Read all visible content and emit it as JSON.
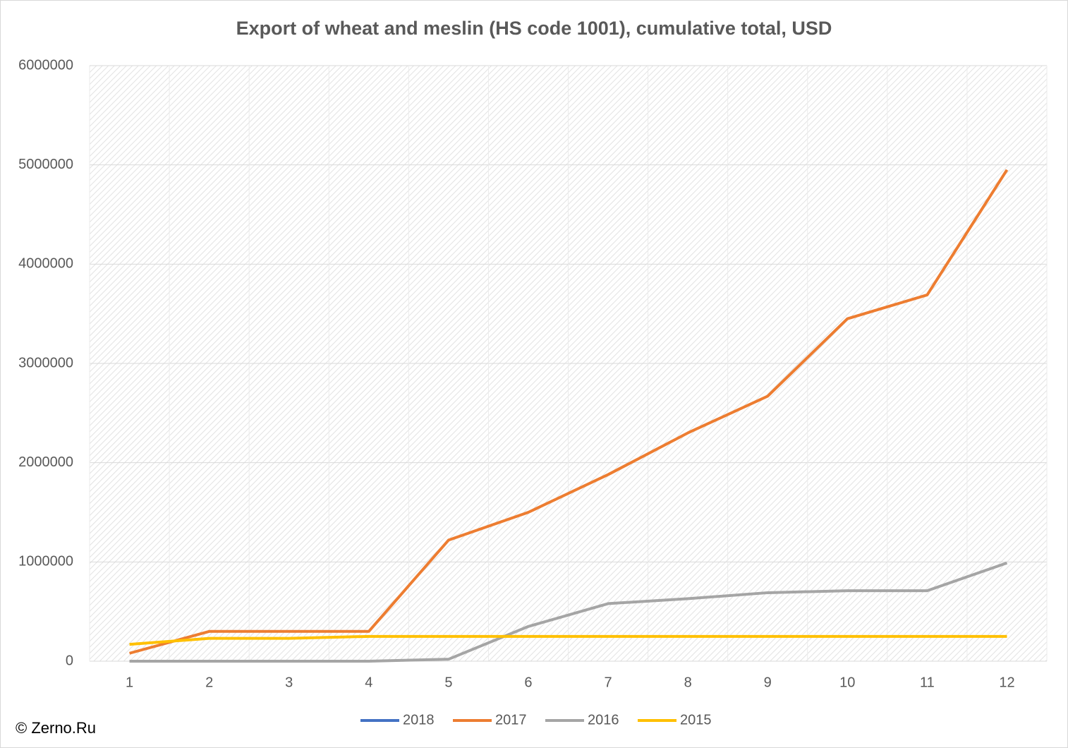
{
  "chart_data": {
    "type": "line",
    "title": "Export of wheat and meslin (HS code 1001), cumulative total, USD",
    "source": "© Zerno.Ru",
    "categories": [
      "1",
      "2",
      "3",
      "4",
      "5",
      "6",
      "7",
      "8",
      "9",
      "10",
      "11",
      "12"
    ],
    "series": [
      {
        "name": "2018",
        "color": "#4472c4",
        "values": [
          null,
          null,
          null,
          null,
          null,
          null,
          null,
          null,
          null,
          null,
          null,
          null
        ]
      },
      {
        "name": "2017",
        "color": "#ed7d31",
        "values": [
          80000,
          300000,
          300000,
          300000,
          1220000,
          1500000,
          1880000,
          2300000,
          2670000,
          3450000,
          3690000,
          4950000
        ]
      },
      {
        "name": "2016",
        "color": "#a5a5a5",
        "values": [
          0,
          0,
          0,
          0,
          20000,
          350000,
          580000,
          630000,
          690000,
          710000,
          710000,
          990000
        ]
      },
      {
        "name": "2015",
        "color": "#ffc000",
        "values": [
          170000,
          230000,
          230000,
          250000,
          250000,
          250000,
          250000,
          250000,
          250000,
          250000,
          250000,
          250000
        ]
      }
    ],
    "ylim": [
      0,
      6000000
    ],
    "yticks": [
      0,
      1000000,
      2000000,
      3000000,
      4000000,
      5000000,
      6000000
    ],
    "grid": true,
    "legend": "bottom"
  }
}
